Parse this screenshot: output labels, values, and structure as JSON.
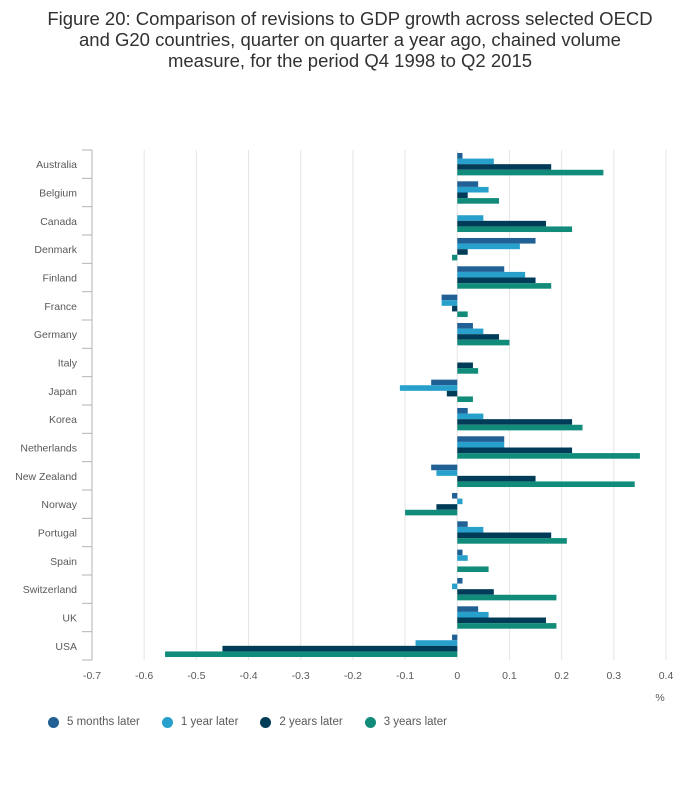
{
  "title_lines": [
    "Figure 20: Comparison of revisions to GDP growth across selected OECD",
    "and G20 countries, quarter on quarter a year ago, chained volume",
    "measure, for the period Q4 1998 to Q2 2015"
  ],
  "chart_data": {
    "type": "bar",
    "orientation": "horizontal",
    "title": "Figure 20: Comparison of revisions to GDP growth across selected OECD and G20 countries, quarter on quarter a year ago, chained volume measure, for the period Q4 1998 to Q2 2015",
    "xlabel": "%",
    "ylabel": "",
    "xlim": [
      -0.7,
      0.4
    ],
    "xticks": [
      -0.7,
      -0.6,
      -0.5,
      -0.4,
      -0.3,
      -0.2,
      -0.1,
      0,
      0.1,
      0.2,
      0.3,
      0.4
    ],
    "xtick_labels": [
      "-0.7",
      "-0.6",
      "-0.5",
      "-0.4",
      "-0.3",
      "-0.2",
      "-0.1",
      "0",
      "0.1",
      "0.2",
      "0.3",
      "0.4"
    ],
    "grid": true,
    "legend_position": "bottom",
    "categories": [
      "Australia",
      "Belgium",
      "Canada",
      "Denmark",
      "Finland",
      "France",
      "Germany",
      "Italy",
      "Japan",
      "Korea",
      "Netherlands",
      "New Zealand",
      "Norway",
      "Portugal",
      "Spain",
      "Switzerland",
      "UK",
      "USA"
    ],
    "series": [
      {
        "name": "5 months later",
        "color": "#206095",
        "values": [
          0.01,
          0.04,
          0.0,
          0.15,
          0.09,
          -0.03,
          0.03,
          0.0,
          -0.05,
          0.02,
          0.09,
          -0.05,
          -0.01,
          0.02,
          0.01,
          0.01,
          0.04,
          -0.01
        ]
      },
      {
        "name": "1 year later",
        "color": "#27a0cc",
        "values": [
          0.07,
          0.06,
          0.05,
          0.12,
          0.13,
          -0.03,
          0.05,
          0.0,
          -0.11,
          0.05,
          0.09,
          -0.04,
          0.01,
          0.05,
          0.02,
          -0.01,
          0.06,
          -0.08
        ]
      },
      {
        "name": "2 years later",
        "color": "#003c57",
        "values": [
          0.18,
          0.02,
          0.17,
          0.02,
          0.15,
          -0.01,
          0.08,
          0.03,
          -0.02,
          0.22,
          0.22,
          0.15,
          -0.04,
          0.18,
          0.0,
          0.07,
          0.17,
          -0.45
        ]
      },
      {
        "name": "3 years later",
        "color": "#118c7b",
        "values": [
          0.28,
          0.08,
          0.22,
          -0.01,
          0.18,
          0.02,
          0.1,
          0.04,
          0.03,
          0.24,
          0.35,
          0.34,
          -0.1,
          0.21,
          0.06,
          0.19,
          0.19,
          -0.56
        ]
      }
    ]
  }
}
